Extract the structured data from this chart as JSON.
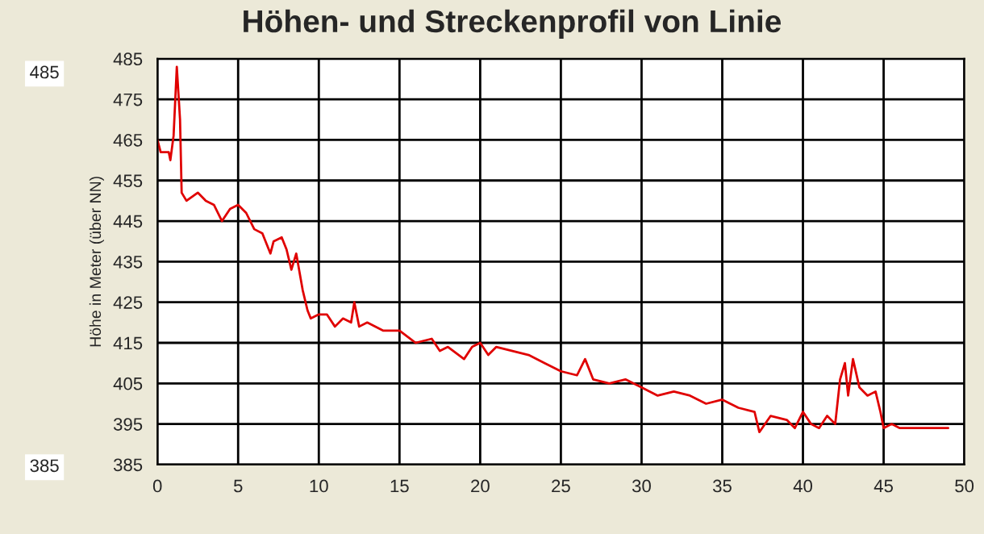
{
  "chart_data": {
    "type": "line",
    "title": "Höhen- und Streckenprofil von Linie",
    "ylabel": "Höhe in Meter (über NN)",
    "annotations": [
      "485",
      "385"
    ],
    "x": [
      0,
      0.2,
      0.7,
      0.8,
      1.0,
      1.2,
      1.4,
      1.5,
      1.8,
      2.5,
      3,
      3.5,
      4,
      4.5,
      5,
      5.5,
      6,
      6.5,
      7,
      7.2,
      7.7,
      8,
      8.3,
      8.6,
      9,
      9.3,
      9.5,
      10,
      10.5,
      11,
      11.5,
      12,
      12.2,
      12.5,
      13,
      14,
      15,
      16,
      17,
      17.5,
      18,
      19,
      19.5,
      20,
      20.5,
      21,
      22,
      23,
      24,
      25,
      26,
      26.5,
      27,
      28,
      29,
      30,
      31,
      32,
      33,
      34,
      35,
      36,
      37,
      37.3,
      38,
      39,
      39.5,
      40,
      40.5,
      41,
      41.5,
      42,
      42.3,
      42.6,
      42.8,
      43.1,
      43.5,
      44,
      44.5,
      44.8,
      45,
      45.5,
      46,
      48,
      49
    ],
    "series": [
      {
        "color": "#e00000",
        "values": [
          465,
          462,
          462,
          460,
          466,
          483,
          470,
          452,
          450,
          452,
          450,
          449,
          445,
          448,
          449,
          447,
          443,
          442,
          437,
          440,
          441,
          438,
          433,
          437,
          428,
          423,
          421,
          422,
          422,
          419,
          421,
          420,
          425,
          419,
          420,
          418,
          418,
          415,
          416,
          413,
          414,
          411,
          414,
          415,
          412,
          414,
          413,
          412,
          410,
          408,
          407,
          411,
          406,
          405,
          406,
          404,
          402,
          403,
          402,
          400,
          401,
          399,
          398,
          393,
          397,
          396,
          394,
          398,
          395,
          394,
          397,
          395,
          406,
          410,
          402,
          411,
          404,
          402,
          403,
          398,
          394,
          395,
          394,
          394,
          394
        ]
      }
    ],
    "xlim": [
      0,
      50
    ],
    "xticks": [
      0,
      5,
      10,
      15,
      20,
      25,
      30,
      35,
      40,
      45,
      50
    ],
    "ylim": [
      385,
      485
    ],
    "yticks": [
      385,
      395,
      405,
      415,
      425,
      435,
      445,
      455,
      465,
      475,
      485
    ],
    "grid": true,
    "legend": false,
    "line_style": "solid",
    "marker": "none"
  }
}
